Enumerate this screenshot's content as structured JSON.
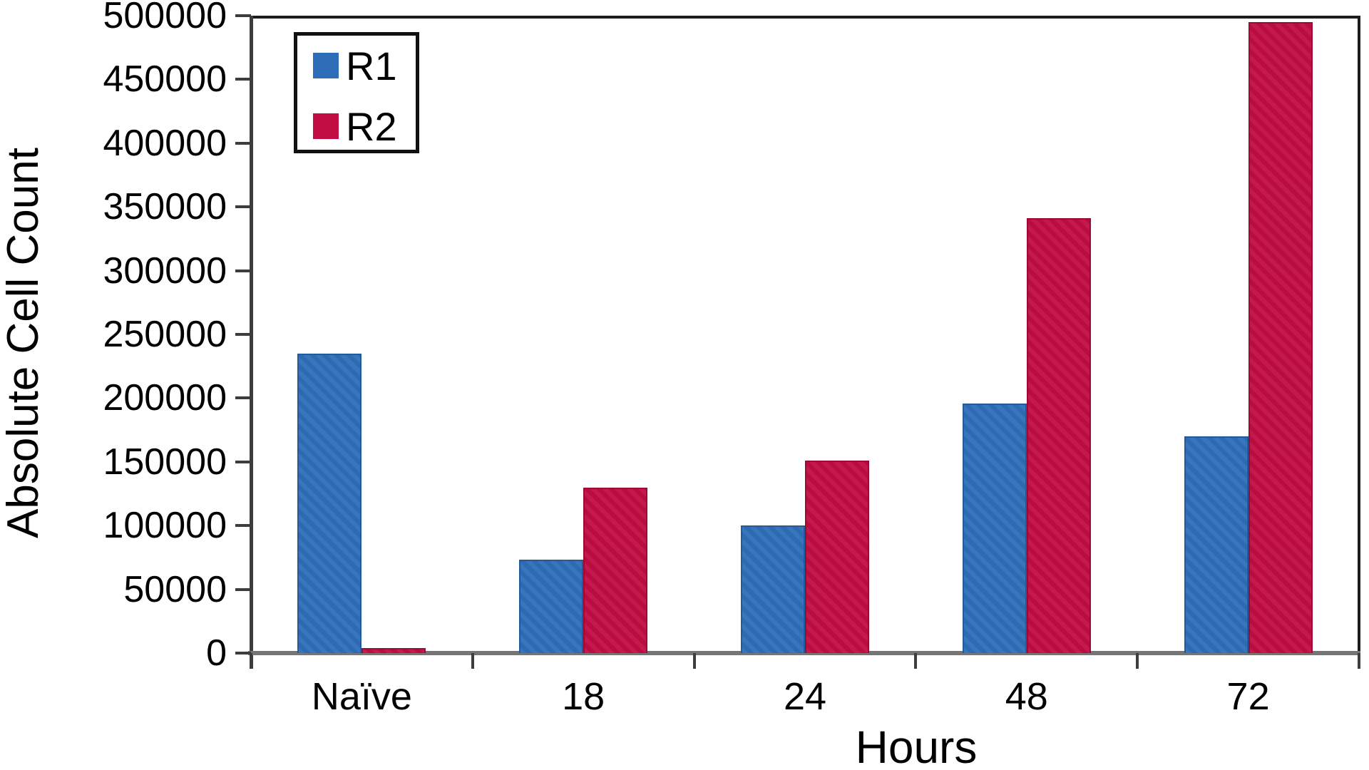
{
  "chart_data": {
    "type": "bar",
    "title": "",
    "xlabel": "Hours",
    "ylabel": "Absolute Cell Count",
    "categories": [
      "Naïve",
      "18",
      "24",
      "48",
      "72"
    ],
    "series": [
      {
        "name": "R1",
        "color": "#2e6eb8",
        "values": [
          235000,
          73000,
          100000,
          196000,
          170000
        ]
      },
      {
        "name": "R2",
        "color": "#c10d43",
        "values": [
          4000,
          130000,
          151000,
          341000,
          495000
        ]
      }
    ],
    "ylim": [
      0,
      500000
    ],
    "ytick_step": 50000,
    "ytick_labels": [
      "0",
      "50000",
      "100000",
      "150000",
      "200000",
      "250000",
      "300000",
      "350000",
      "400000",
      "450000",
      "500000"
    ],
    "grid": false,
    "legend_position": "top-left",
    "plot_frame": "box"
  },
  "legend": {
    "items": [
      {
        "label": "R1",
        "color": "#2e6eb8"
      },
      {
        "label": "R2",
        "color": "#c10d43"
      }
    ]
  },
  "axes": {
    "x_title": "Hours",
    "y_title": "Absolute Cell Count"
  }
}
